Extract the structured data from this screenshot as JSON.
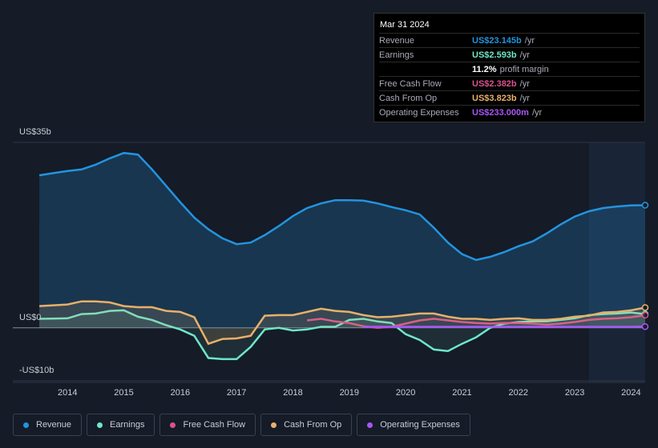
{
  "chart_data": {
    "type": "line",
    "x": [
      2013.5,
      2013.75,
      2014,
      2014.25,
      2014.5,
      2014.75,
      2015,
      2015.25,
      2015.5,
      2015.75,
      2016,
      2016.25,
      2016.5,
      2016.75,
      2017,
      2017.25,
      2017.5,
      2017.75,
      2018,
      2018.25,
      2018.5,
      2018.75,
      2019,
      2019.25,
      2019.5,
      2019.75,
      2020,
      2020.25,
      2020.5,
      2020.75,
      2021,
      2021.25,
      2021.5,
      2021.75,
      2022,
      2022.25,
      2022.5,
      2022.75,
      2023,
      2023.25,
      2023.5,
      2023.75,
      2024,
      2024.25
    ],
    "xlim": [
      2013.03,
      2024.25
    ],
    "xticks": [
      2014,
      2015,
      2016,
      2017,
      2018,
      2019,
      2020,
      2021,
      2022,
      2023,
      2024
    ],
    "ylim": [
      -10.3,
      35
    ],
    "yticks": [
      {
        "value": 35,
        "label": "US$35b"
      },
      {
        "value": 0,
        "label": "US$0"
      },
      {
        "value": -10,
        "label": "-US$10b"
      }
    ],
    "series": [
      {
        "name": "Revenue",
        "color": "#2394df",
        "values": [
          28.8,
          29.2,
          29.6,
          29.9,
          30.8,
          32,
          33,
          32.7,
          29.9,
          26.8,
          23.7,
          20.8,
          18.6,
          16.9,
          15.8,
          16.1,
          17.5,
          19.2,
          21.1,
          22.6,
          23.5,
          24.1,
          24.1,
          24,
          23.5,
          22.8,
          22.2,
          21.4,
          18.9,
          16.1,
          13.9,
          12.8,
          13.4,
          14.3,
          15.4,
          16.3,
          17.8,
          19.5,
          21,
          22,
          22.6,
          22.9,
          23.1,
          23.145
        ]
      },
      {
        "name": "Earnings",
        "color": "#6ee7c8",
        "values": [
          1.7,
          1.75,
          1.8,
          2.6,
          2.7,
          3.2,
          3.3,
          2.1,
          1.5,
          0.5,
          -0.3,
          -1.5,
          -5.7,
          -5.9,
          -5.9,
          -3.6,
          -0.3,
          0,
          -0.5,
          -0.3,
          0.2,
          0.2,
          1.5,
          1.7,
          1.2,
          0.9,
          -1.2,
          -2.3,
          -4.1,
          -4.4,
          -3,
          -1.8,
          0,
          0.8,
          1.1,
          1.2,
          1.2,
          1.5,
          1.8,
          2.4,
          2.6,
          2.7,
          2.9,
          2.593
        ]
      },
      {
        "name": "Free Cash Flow",
        "color": "#d9538a",
        "values": [
          null,
          null,
          null,
          null,
          null,
          null,
          null,
          null,
          null,
          null,
          null,
          null,
          null,
          null,
          null,
          null,
          null,
          null,
          null,
          1.4,
          1.7,
          1.2,
          0.9,
          0.3,
          0,
          0.2,
          0.8,
          1.4,
          1.7,
          1.4,
          1.1,
          0.9,
          0.8,
          0.9,
          0.9,
          0.8,
          0.6,
          0.8,
          1.1,
          1.5,
          1.7,
          1.8,
          2,
          2.382
        ]
      },
      {
        "name": "Cash From Op",
        "color": "#e8b06a",
        "values": [
          4.1,
          4.25,
          4.4,
          5,
          5,
          4.8,
          4.1,
          3.9,
          3.9,
          3.2,
          3,
          2,
          -3,
          -2.1,
          -2,
          -1.5,
          2.3,
          2.4,
          2.4,
          3,
          3.6,
          3.2,
          3,
          2.4,
          2,
          2.1,
          2.4,
          2.7,
          2.7,
          2.1,
          1.7,
          1.7,
          1.5,
          1.7,
          1.8,
          1.5,
          1.5,
          1.7,
          2.1,
          2.3,
          2.9,
          3,
          3.3,
          3.823
        ]
      },
      {
        "name": "Operating Expenses",
        "color": "#a855f7",
        "values": [
          null,
          null,
          null,
          null,
          null,
          null,
          null,
          null,
          null,
          null,
          null,
          null,
          null,
          null,
          null,
          null,
          null,
          null,
          null,
          null,
          null,
          null,
          null,
          0.2,
          0.2,
          0.2,
          0.2,
          0.2,
          0.2,
          0.2,
          0.2,
          0.2,
          0.2,
          0.2,
          0.2,
          0.2,
          0.2,
          0.2,
          0.2,
          0.2,
          0.2,
          0.2,
          0.2,
          0.233
        ]
      }
    ]
  },
  "tooltip": {
    "date": "Mar 31 2024",
    "rows": [
      {
        "label": "Revenue",
        "value": "US$23.145b",
        "unit": "/yr",
        "color": "#2394df"
      },
      {
        "label": "Earnings",
        "value": "US$2.593b",
        "unit": "/yr",
        "color": "#6ee7c8"
      },
      {
        "label": "",
        "value": "11.2%",
        "unit": "profit margin",
        "color": "#ffffff"
      },
      {
        "label": "Free Cash Flow",
        "value": "US$2.382b",
        "unit": "/yr",
        "color": "#d9538a"
      },
      {
        "label": "Cash From Op",
        "value": "US$3.823b",
        "unit": "/yr",
        "color": "#e8b06a"
      },
      {
        "label": "Operating Expenses",
        "value": "US$233.000m",
        "unit": "/yr",
        "color": "#a855f7"
      }
    ]
  }
}
